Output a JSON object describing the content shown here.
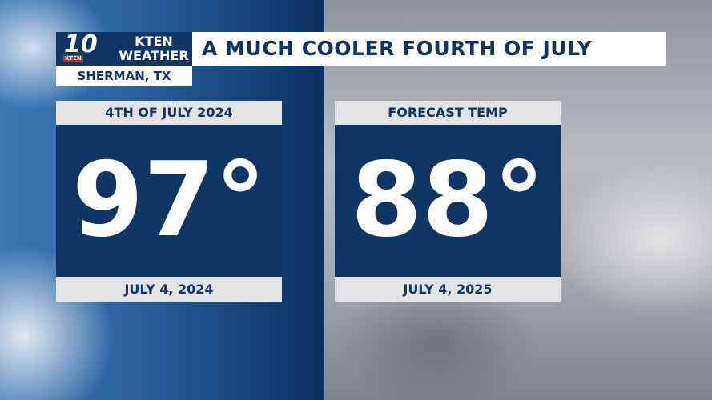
{
  "header": {
    "logo_number": "10",
    "logo_small": "KTEN",
    "station_line1": "KTEN",
    "station_line2": "WEATHER",
    "location": "SHERMAN, TX",
    "title": "A MUCH COOLER FOURTH OF JULY"
  },
  "panels": [
    {
      "label": "4TH OF JULY 2024",
      "temperature": "97°",
      "date": "JULY 4, 2024"
    },
    {
      "label": "FORECAST TEMP",
      "temperature": "88°",
      "date": "JULY 4, 2025"
    }
  ]
}
